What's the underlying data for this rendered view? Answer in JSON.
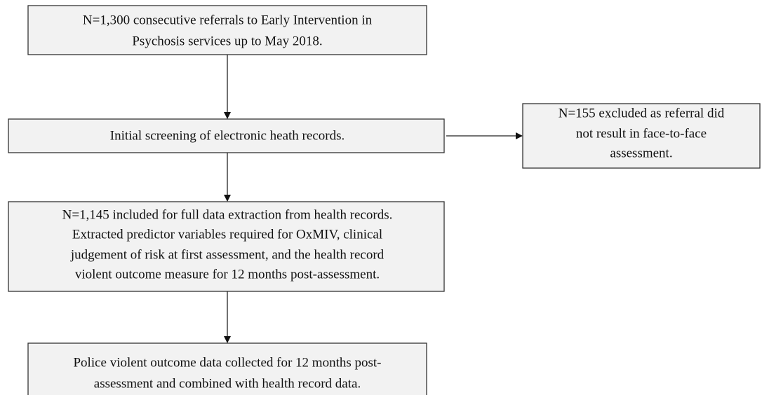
{
  "nodes": [
    {
      "lines": [
        "N=1,300 consecutive referrals to Early Intervention in",
        "Psychosis services up to May 2018."
      ]
    },
    {
      "lines": [
        "Initial screening of electronic heath records."
      ]
    },
    {
      "lines": [
        "N=155 excluded as referral did",
        "not result in face-to-face",
        "assessment."
      ]
    },
    {
      "lines": [
        "N=1,145 included for full data extraction from health records.",
        "Extracted predictor variables required for OxMIV, clinical",
        "judgement of risk at first assessment, and the health record",
        "violent outcome measure for 12 months post-assessment."
      ]
    },
    {
      "lines": [
        "Police violent outcome data collected for 12 months post-",
        "assessment and combined with health record data."
      ]
    }
  ]
}
